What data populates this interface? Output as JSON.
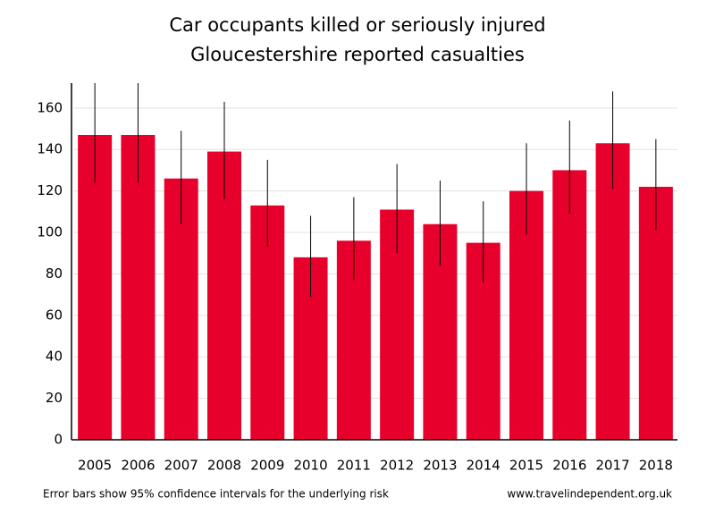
{
  "chart_data": {
    "type": "bar",
    "title": "Car occupants killed or seriously injured",
    "subtitle": "Gloucestershire reported casualties",
    "categories": [
      "2005",
      "2006",
      "2007",
      "2008",
      "2009",
      "2010",
      "2011",
      "2012",
      "2013",
      "2014",
      "2015",
      "2016",
      "2017",
      "2018"
    ],
    "values": [
      147,
      147,
      126,
      139,
      113,
      88,
      96,
      111,
      104,
      95,
      120,
      130,
      143,
      122
    ],
    "error_low": [
      124,
      124,
      104,
      116,
      93,
      69,
      77,
      90,
      84,
      76,
      99,
      109,
      121,
      101
    ],
    "error_high": [
      172,
      172,
      149,
      163,
      135,
      108,
      117,
      133,
      125,
      115,
      143,
      154,
      168,
      145
    ],
    "color": "#e8002d",
    "ylim": [
      0,
      172
    ],
    "yticks": [
      0,
      20,
      40,
      60,
      80,
      100,
      120,
      140,
      160
    ],
    "grid": true,
    "footnote": "Error bars show 95% confidence intervals for the underlying risk",
    "source": "www.travelindependent.org.uk"
  }
}
